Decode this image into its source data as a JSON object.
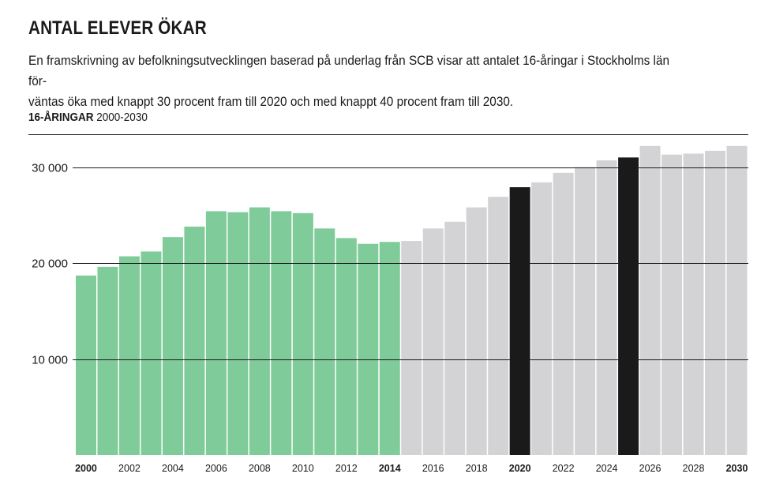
{
  "header": {
    "title": "ANTAL ELEVER ÖKAR",
    "lead": "En framskrivning av befolkningsutvecklingen baserad på underlag från SCB visar att antalet 16-åringar i Stockholms län för-\nväntas öka med knappt 30 procent fram till 2020 och med knappt 40 procent fram till 2030."
  },
  "chart_label": {
    "bold": "16-ÅRINGAR",
    "range": "2000-2030"
  },
  "colors": {
    "historical": "#7fcb99",
    "forecast": "#d3d3d5",
    "highlight": "#1a1a1a"
  },
  "chart_data": {
    "type": "bar",
    "title": "16-ÅRINGAR 2000-2030",
    "xlabel": "",
    "ylabel": "",
    "ylim": [
      0,
      33000
    ],
    "yticks": [
      10000,
      20000,
      30000
    ],
    "ytick_labels": [
      "10 000",
      "20 000",
      "30 000"
    ],
    "categories": [
      "2000",
      "2001",
      "2002",
      "2003",
      "2004",
      "2005",
      "2006",
      "2007",
      "2008",
      "2009",
      "2010",
      "2011",
      "2012",
      "2013",
      "2014",
      "2015",
      "2016",
      "2017",
      "2018",
      "2019",
      "2020",
      "2021",
      "2022",
      "2023",
      "2024",
      "2025",
      "2026",
      "2027",
      "2028",
      "2029",
      "2030"
    ],
    "values": [
      18700,
      19600,
      20700,
      21200,
      22700,
      23800,
      25400,
      25300,
      25800,
      25400,
      25200,
      23600,
      22600,
      22000,
      22200,
      22300,
      23600,
      24300,
      25800,
      26900,
      27900,
      28400,
      29400,
      30000,
      30700,
      31000,
      32200,
      31300,
      31400,
      31700,
      32200
    ],
    "bar_kind": [
      "historical",
      "historical",
      "historical",
      "historical",
      "historical",
      "historical",
      "historical",
      "historical",
      "historical",
      "historical",
      "historical",
      "historical",
      "historical",
      "historical",
      "historical",
      "forecast",
      "forecast",
      "forecast",
      "forecast",
      "forecast",
      "highlight",
      "forecast",
      "forecast",
      "forecast",
      "forecast",
      "highlight",
      "forecast",
      "forecast",
      "forecast",
      "forecast",
      "forecast"
    ],
    "xtick_labels": [
      {
        "label": "2000",
        "index": 0,
        "bold": true
      },
      {
        "label": "2002",
        "index": 2,
        "bold": false
      },
      {
        "label": "2004",
        "index": 4,
        "bold": false
      },
      {
        "label": "2006",
        "index": 6,
        "bold": false
      },
      {
        "label": "2008",
        "index": 8,
        "bold": false
      },
      {
        "label": "2010",
        "index": 10,
        "bold": false
      },
      {
        "label": "2012",
        "index": 12,
        "bold": false
      },
      {
        "label": "2014",
        "index": 14,
        "bold": true
      },
      {
        "label": "2016",
        "index": 16,
        "bold": false
      },
      {
        "label": "2018",
        "index": 18,
        "bold": false
      },
      {
        "label": "2020",
        "index": 20,
        "bold": true
      },
      {
        "label": "2022",
        "index": 22,
        "bold": false
      },
      {
        "label": "2024",
        "index": 24,
        "bold": false
      },
      {
        "label": "2026",
        "index": 26,
        "bold": false
      },
      {
        "label": "2028",
        "index": 28,
        "bold": false
      },
      {
        "label": "2030",
        "index": 30,
        "bold": true
      }
    ]
  }
}
